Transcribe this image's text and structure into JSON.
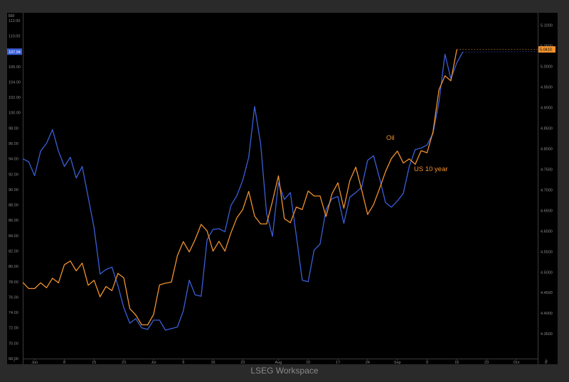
{
  "app": {
    "watermark": "LSEG Workspace"
  },
  "colors": {
    "background": "#000000",
    "oil": "#3a5fd8",
    "us10y": "#f0922e",
    "axis_text": "#8c8c8c",
    "frame": "#2a2a2a"
  },
  "chart_data": {
    "type": "line",
    "title": "",
    "left_axis": {
      "label": "bbl",
      "ylim": [
        68,
        113
      ],
      "ticks": [
        "68.00",
        "70.00",
        "72.00",
        "74.00",
        "76.00",
        "78.00",
        "80.00",
        "82.00",
        "84.00",
        "86.00",
        "88.00",
        "90.00",
        "92.00",
        "94.00",
        "96.00",
        "98.00",
        "100.00",
        "102.00",
        "104.00",
        "106.00",
        "108.00",
        "110.00",
        "112.00"
      ],
      "last_value_label": "107.94"
    },
    "right_axis": {
      "ylim": [
        4.29,
        5.13
      ],
      "ticks": [
        "4.3500",
        "4.4000",
        "4.4500",
        "4.5000",
        "4.5500",
        "4.6000",
        "4.6500",
        "4.7000",
        "4.7500",
        "4.8000",
        "4.8500",
        "4.9000",
        "4.9500",
        "5.0000",
        "5.0500",
        "5.1000"
      ],
      "last_value_label": "5.0410"
    },
    "x_axis": {
      "ticks": [
        {
          "label": "Jun",
          "index": 2
        },
        {
          "label": "8",
          "index": 7
        },
        {
          "label": "15",
          "index": 12
        },
        {
          "label": "23",
          "index": 17
        },
        {
          "label": "Jul",
          "index": 22
        },
        {
          "label": "9",
          "index": 27
        },
        {
          "label": "16",
          "index": 32
        },
        {
          "label": "23",
          "index": 37
        },
        {
          "label": "Aug",
          "index": 43
        },
        {
          "label": "10",
          "index": 48
        },
        {
          "label": "17",
          "index": 53
        },
        {
          "label": "24",
          "index": 58
        },
        {
          "label": "Sep",
          "index": 63
        },
        {
          "label": "9",
          "index": 68
        },
        {
          "label": "16",
          "index": 73
        },
        {
          "label": "23",
          "index": 78
        },
        {
          "label": "Oct",
          "index": 83
        },
        {
          "label": "8",
          "index": 88
        }
      ]
    },
    "series": [
      {
        "name": "Oil",
        "axis": "left",
        "values": [
          94.0,
          93.6,
          91.8,
          95.0,
          96.0,
          97.8,
          95.0,
          93.0,
          94.2,
          91.5,
          93.0,
          89.0,
          85.0,
          79.0,
          79.6,
          79.9,
          77.5,
          74.6,
          72.6,
          73.2,
          72.0,
          71.8,
          73.0,
          73.0,
          71.7,
          71.9,
          72.1,
          74.2,
          78.2,
          76.3,
          76.1,
          83.5,
          84.8,
          84.9,
          84.5,
          87.9,
          89.2,
          91.2,
          94.2,
          100.8,
          96.0,
          86.9,
          83.9,
          90.9,
          88.7,
          89.6,
          84.0,
          78.2,
          78.0,
          82.1,
          82.9,
          87.4,
          88.8,
          89.1,
          85.6,
          89.0,
          89.6,
          90.3,
          93.8,
          94.4,
          91.5,
          88.3,
          87.7,
          88.5,
          89.5,
          93.0,
          95.2,
          95.4,
          95.8,
          97.3,
          101.4,
          107.6,
          104.4,
          106.5,
          107.9
        ]
      },
      {
        "name": "US 10 year",
        "axis": "right",
        "values": [
          4.475,
          4.46,
          4.46,
          4.474,
          4.462,
          4.485,
          4.474,
          4.518,
          4.527,
          4.503,
          4.522,
          4.468,
          4.48,
          4.44,
          4.465,
          4.455,
          4.497,
          4.486,
          4.411,
          4.396,
          4.372,
          4.372,
          4.397,
          4.469,
          4.473,
          4.476,
          4.54,
          4.574,
          4.549,
          4.579,
          4.616,
          4.6,
          4.551,
          4.575,
          4.551,
          4.595,
          4.632,
          4.652,
          4.696,
          4.636,
          4.617,
          4.617,
          4.672,
          4.734,
          4.63,
          4.62,
          4.658,
          4.652,
          4.697,
          4.685,
          4.685,
          4.635,
          4.69,
          4.717,
          4.655,
          4.722,
          4.755,
          4.7,
          4.64,
          4.664,
          4.703,
          4.744,
          4.776,
          4.794,
          4.765,
          4.775,
          4.762,
          4.795,
          4.79,
          4.841,
          4.943,
          4.977,
          4.965,
          5.041
        ]
      }
    ],
    "annotations": [
      {
        "text": "Oil",
        "series": "Oil",
        "color": "#f0922e"
      },
      {
        "text": "US 10 year",
        "series": "US 10 year",
        "color": "#f0922e"
      }
    ],
    "grid": false,
    "legend": "none"
  }
}
